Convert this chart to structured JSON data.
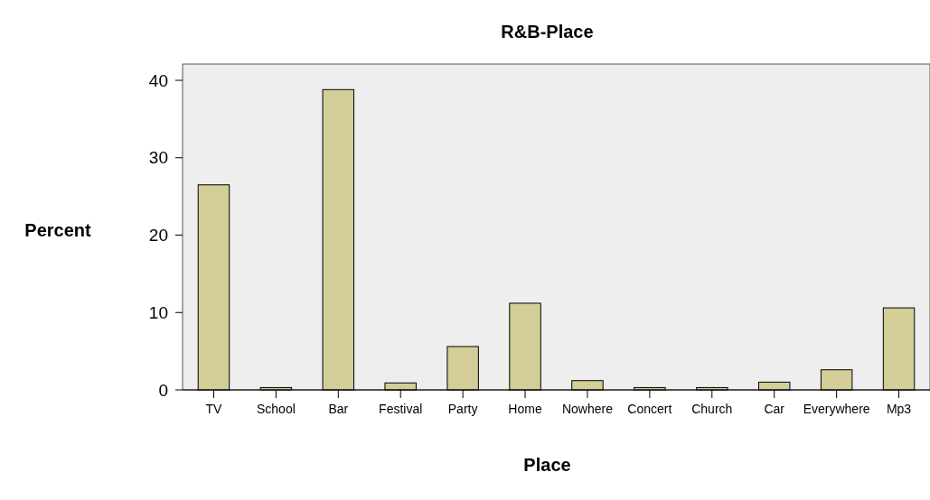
{
  "chart_data": {
    "type": "bar",
    "title": "R&B-Place",
    "xlabel": "Place",
    "ylabel": "Percent",
    "categories": [
      "TV",
      "School",
      "Bar",
      "Festival",
      "Party",
      "Home",
      "Nowhere",
      "Concert",
      "Church",
      "Car",
      "Everywhere",
      "Mp3"
    ],
    "values": [
      26.5,
      0.3,
      38.8,
      0.9,
      5.6,
      11.2,
      1.2,
      0.3,
      0.3,
      1.0,
      2.6,
      10.6
    ],
    "color": "#d3ce97",
    "ylim": [
      0,
      42.1
    ],
    "yticks": [
      0,
      10,
      20,
      30,
      40
    ],
    "grid": false
  }
}
